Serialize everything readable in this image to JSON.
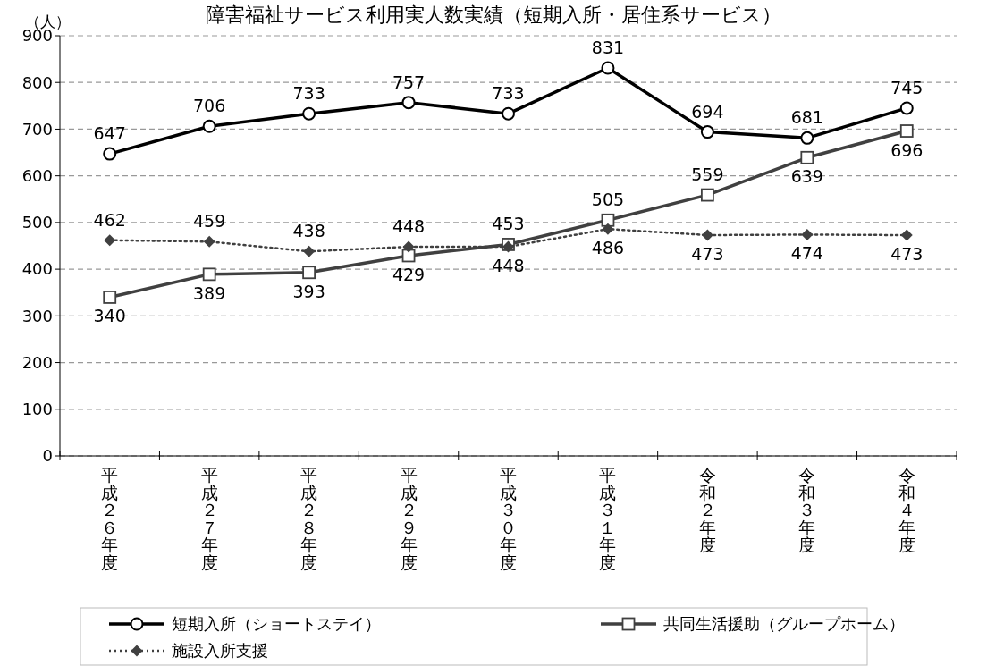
{
  "chart_data": {
    "type": "line",
    "title": "障害福祉サービス利用実人数実績（短期入所・居住系サービス）",
    "ylabel": "（人）",
    "categories": [
      "平成２６年度",
      "平成２７年度",
      "平成２８年度",
      "平成２９年度",
      "平成３０年度",
      "平成３１年度",
      "令和２年度",
      "令和３年度",
      "令和４年度"
    ],
    "series": [
      {
        "name": "短期入所（ショートステイ）",
        "color": "#000000",
        "marker": "circle",
        "line_style": "solid",
        "values": [
          647,
          706,
          733,
          757,
          733,
          831,
          694,
          681,
          745
        ]
      },
      {
        "name": "共同生活援助（グループホーム）",
        "color": "#404040",
        "marker": "square",
        "line_style": "solid",
        "values": [
          340,
          389,
          393,
          429,
          453,
          505,
          559,
          639,
          696
        ]
      },
      {
        "name": "施設入所支援",
        "color": "#404040",
        "marker": "diamond",
        "line_style": "dotted",
        "values": [
          462,
          459,
          438,
          448,
          448,
          486,
          473,
          474,
          473
        ]
      }
    ],
    "ylim": [
      0,
      900
    ],
    "yticks": [
      0,
      100,
      200,
      300,
      400,
      500,
      600,
      700,
      800,
      900
    ],
    "grid": "y",
    "legend": "bottom",
    "data_labels": true
  }
}
